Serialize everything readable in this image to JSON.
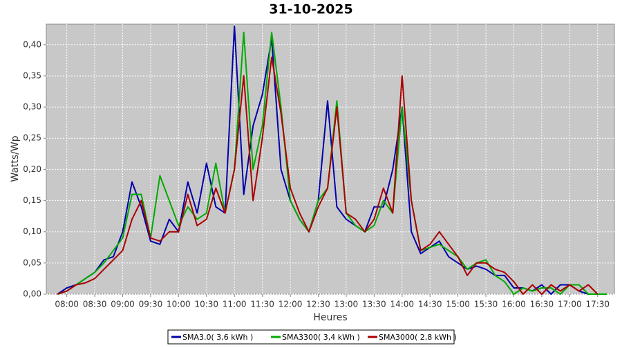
{
  "chart_data": {
    "type": "line",
    "title": "31-10-2025",
    "x_label": "Heures",
    "y_label": "Watts/Wp",
    "x": [
      "07:50",
      "08:00",
      "08:10",
      "08:20",
      "08:30",
      "08:40",
      "08:50",
      "09:00",
      "09:10",
      "09:20",
      "09:30",
      "09:40",
      "09:50",
      "10:00",
      "10:10",
      "10:20",
      "10:30",
      "10:40",
      "10:50",
      "11:00",
      "11:10",
      "11:20",
      "11:30",
      "11:40",
      "11:50",
      "12:00",
      "12:10",
      "12:20",
      "12:30",
      "12:40",
      "12:50",
      "13:00",
      "13:10",
      "13:20",
      "13:30",
      "13:40",
      "13:50",
      "14:00",
      "14:10",
      "14:20",
      "14:30",
      "14:40",
      "14:50",
      "15:00",
      "15:10",
      "15:20",
      "15:30",
      "15:40",
      "15:50",
      "16:00",
      "16:10",
      "16:20",
      "16:30",
      "16:40",
      "16:50",
      "17:00",
      "17:10",
      "17:20",
      "17:30",
      "17:40"
    ],
    "series": [
      {
        "name": "SMA3.0( 3,6 kWh )",
        "color": "#0000aa",
        "values": [
          0,
          0.01,
          0.015,
          0.025,
          0.035,
          0.055,
          0.06,
          0.1,
          0.18,
          0.14,
          0.085,
          0.08,
          0.12,
          0.1,
          0.18,
          0.13,
          0.21,
          0.14,
          0.13,
          0.43,
          0.16,
          0.27,
          0.32,
          0.41,
          0.2,
          0.15,
          0.12,
          0.1,
          0.15,
          0.31,
          0.14,
          0.12,
          0.11,
          0.1,
          0.14,
          0.14,
          0.2,
          0.3,
          0.1,
          0.065,
          0.075,
          0.085,
          0.06,
          0.05,
          0.04,
          0.045,
          0.04,
          0.03,
          0.03,
          0.01,
          0.01,
          0.005,
          0.015,
          0,
          0.015,
          0.015,
          0.005,
          0,
          null,
          null
        ]
      },
      {
        "name": "SMA3300( 3,4 kWh )",
        "color": "#00aa00",
        "values": [
          0,
          0.005,
          0.015,
          0.025,
          0.035,
          0.05,
          0.07,
          0.09,
          0.16,
          0.16,
          0.09,
          0.19,
          0.15,
          0.11,
          0.14,
          0.12,
          0.13,
          0.21,
          0.13,
          0.2,
          0.42,
          0.2,
          0.27,
          0.42,
          0.3,
          0.15,
          0.12,
          0.1,
          0.15,
          0.17,
          0.31,
          0.13,
          0.11,
          0.1,
          0.11,
          0.15,
          0.13,
          0.3,
          0.15,
          0.07,
          0.075,
          0.08,
          0.07,
          0.06,
          0.04,
          0.05,
          0.055,
          0.03,
          0.02,
          0,
          0.01,
          0.005,
          0.01,
          0.01,
          0,
          0.015,
          0.015,
          0,
          0,
          0
        ]
      },
      {
        "name": "SMA3000( 2,8 kWh )",
        "color": "#aa0000",
        "values": [
          0,
          0.005,
          0.015,
          0.018,
          0.025,
          0.04,
          0.055,
          0.07,
          0.12,
          0.15,
          0.09,
          0.085,
          0.1,
          0.1,
          0.16,
          0.11,
          0.12,
          0.17,
          0.13,
          0.2,
          0.35,
          0.15,
          0.25,
          0.38,
          0.29,
          0.17,
          0.13,
          0.1,
          0.14,
          0.17,
          0.3,
          0.13,
          0.12,
          0.1,
          0.12,
          0.17,
          0.13,
          0.35,
          0.15,
          0.07,
          0.08,
          0.1,
          0.08,
          0.06,
          0.03,
          0.05,
          0.05,
          0.04,
          0.035,
          0.02,
          0,
          0.015,
          0,
          0.015,
          0.005,
          0.015,
          0.005,
          0.015,
          0,
          null
        ]
      }
    ],
    "xlim": [
      "07:38",
      "17:48"
    ],
    "xticks": [
      "08:00",
      "08:30",
      "09:00",
      "09:30",
      "10:00",
      "10:30",
      "11:00",
      "11:30",
      "12:00",
      "12:30",
      "13:00",
      "13:30",
      "14:00",
      "14:30",
      "15:00",
      "15:30",
      "16:00",
      "16:30",
      "17:00",
      "17:30"
    ],
    "ylim": [
      0,
      0.433
    ],
    "yticks": [
      {
        "value": 0,
        "label": "0,00"
      },
      {
        "value": 0.05,
        "label": "0,05"
      },
      {
        "value": 0.1,
        "label": "0,10"
      },
      {
        "value": 0.15,
        "label": "0,15"
      },
      {
        "value": 0.2,
        "label": "0,20"
      },
      {
        "value": 0.25,
        "label": "0,25"
      },
      {
        "value": 0.3,
        "label": "0,30"
      },
      {
        "value": 0.35,
        "label": "0,35"
      },
      {
        "value": 0.4,
        "label": "0,40"
      }
    ],
    "grid": true
  }
}
